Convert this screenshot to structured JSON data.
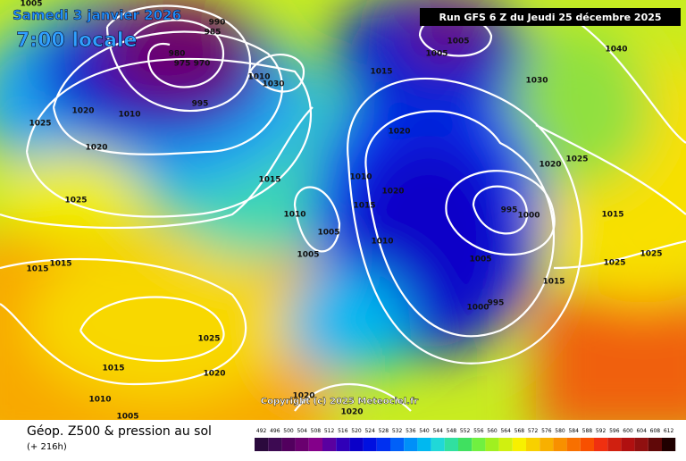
{
  "header": {
    "date": "Samedi 3 janvier 2026",
    "time": "7:00 locale",
    "run": "Run GFS 6 Z du Jeudi 25 décembre 2025"
  },
  "isobar_labels": [
    "1005",
    "990",
    "985",
    "980",
    "975",
    "970",
    "995",
    "1020",
    "1010",
    "1025",
    "1020",
    "1025",
    "1015",
    "1010",
    "1005",
    "1005",
    "1015",
    "1015",
    "1010",
    "1030",
    "1015",
    "1005",
    "1005",
    "1040",
    "1030",
    "1020",
    "1010",
    "1020",
    "1015",
    "1010",
    "995",
    "1000",
    "1020",
    "1025",
    "1015",
    "1025",
    "1025",
    "1005",
    "1015",
    "1000",
    "995",
    "1025",
    "1015",
    "1020",
    "1010",
    "1005",
    "1020",
    "1020"
  ],
  "copyright": "Copyright (c) 2025 Meteociel.fr",
  "footer": {
    "title": "Géop. Z500 & pression au sol",
    "lead": "(+ 216h)"
  },
  "colorbar": {
    "ticks": [
      492,
      496,
      500,
      504,
      508,
      512,
      516,
      520,
      524,
      528,
      532,
      536,
      540,
      544,
      548,
      552,
      556,
      560,
      564,
      568,
      572,
      576,
      580,
      584,
      588,
      592,
      596,
      600,
      604,
      608,
      612
    ],
    "colors": [
      "#2b0a3d",
      "#3d0a52",
      "#52005e",
      "#6a006f",
      "#84008a",
      "#5a00a0",
      "#3000b8",
      "#0a00c8",
      "#0010e0",
      "#0030f0",
      "#0060f8",
      "#0090f8",
      "#00b8f0",
      "#20d8d8",
      "#30e0a0",
      "#40e060",
      "#70f040",
      "#a0f020",
      "#d0f010",
      "#f8f000",
      "#f8d000",
      "#f8b000",
      "#f89000",
      "#f87000",
      "#f85000",
      "#f03010",
      "#d02010",
      "#b01010",
      "#901010",
      "#600808",
      "#200000"
    ]
  }
}
